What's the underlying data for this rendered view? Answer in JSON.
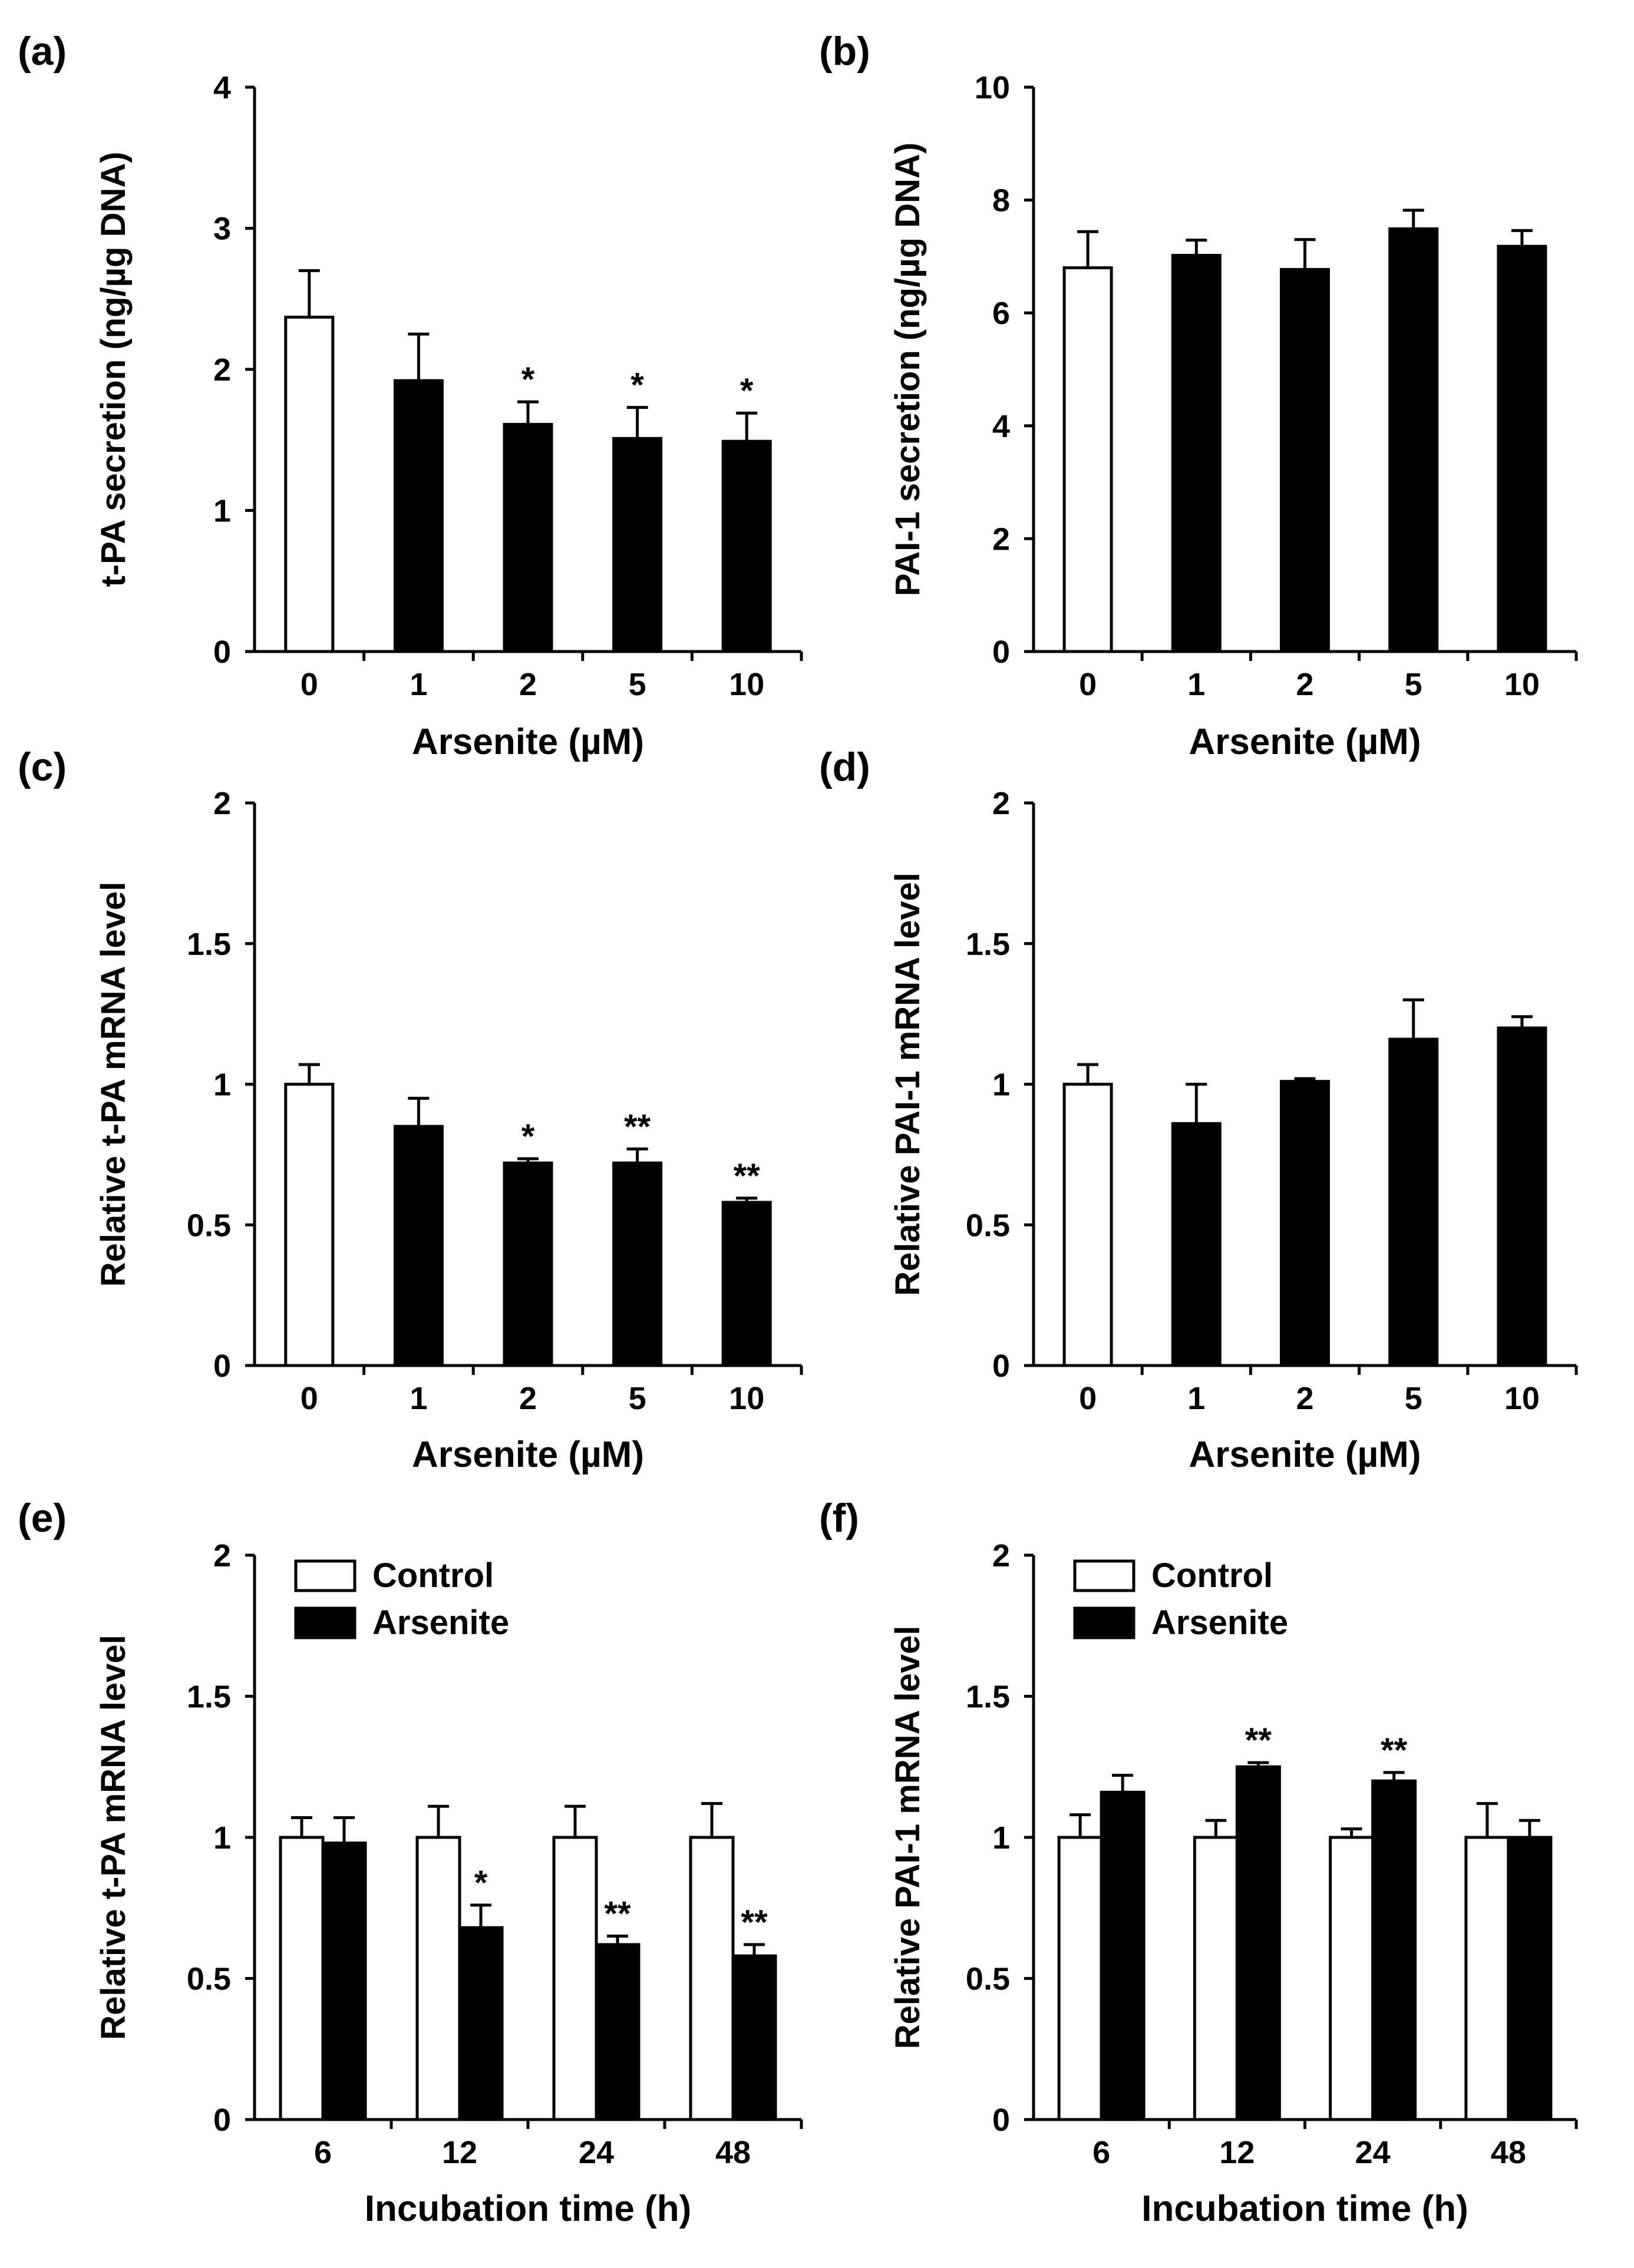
{
  "chart_data": [
    {
      "type": "bar",
      "panel_label": "(a)",
      "xlabel": "Arsenite (µM)",
      "ylabel": "t-PA secretion (ng/µg DNA)",
      "categories": [
        "0",
        "1",
        "2",
        "5",
        "10"
      ],
      "ylim": [
        0,
        4
      ],
      "yticks": [
        "0",
        "1",
        "2",
        "3",
        "4"
      ],
      "series": [
        {
          "name": "",
          "colors": [
            "#ffffff",
            "#000000",
            "#000000",
            "#000000",
            "#000000"
          ],
          "values": [
            2.37,
            1.92,
            1.61,
            1.51,
            1.49
          ],
          "errors": [
            0.33,
            0.33,
            0.16,
            0.22,
            0.2
          ],
          "annotations": [
            "",
            "",
            "*",
            "*",
            "*"
          ]
        }
      ]
    },
    {
      "type": "bar",
      "panel_label": "(b)",
      "xlabel": "Arsenite (µM)",
      "ylabel": "PAI-1 secretion (ng/µg DNA)",
      "categories": [
        "0",
        "1",
        "2",
        "5",
        "10"
      ],
      "ylim": [
        0,
        10
      ],
      "yticks": [
        "0",
        "2",
        "4",
        "6",
        "8",
        "10"
      ],
      "series": [
        {
          "name": "",
          "colors": [
            "#ffffff",
            "#000000",
            "#000000",
            "#000000",
            "#000000"
          ],
          "values": [
            6.8,
            7.02,
            6.77,
            7.49,
            7.18
          ],
          "errors": [
            0.64,
            0.27,
            0.53,
            0.33,
            0.28
          ],
          "annotations": [
            "",
            "",
            "",
            "",
            ""
          ]
        }
      ]
    },
    {
      "type": "bar",
      "panel_label": "(c)",
      "xlabel": "Arsenite (µM)",
      "ylabel": "Relative t-PA mRNA level",
      "categories": [
        "0",
        "1",
        "2",
        "5",
        "10"
      ],
      "ylim": [
        0,
        2
      ],
      "yticks": [
        "0",
        "0.5",
        "1",
        "1.5",
        "2"
      ],
      "series": [
        {
          "name": "",
          "colors": [
            "#ffffff",
            "#000000",
            "#000000",
            "#000000",
            "#000000"
          ],
          "values": [
            1.0,
            0.85,
            0.72,
            0.72,
            0.58
          ],
          "errors": [
            0.07,
            0.1,
            0.015,
            0.05,
            0.015
          ],
          "annotations": [
            "",
            "",
            "*",
            "**",
            "**"
          ]
        }
      ]
    },
    {
      "type": "bar",
      "panel_label": "(d)",
      "xlabel": "Arsenite (µM)",
      "ylabel": "Relative PAI-1 mRNA level",
      "categories": [
        "0",
        "1",
        "2",
        "5",
        "10"
      ],
      "ylim": [
        0,
        2
      ],
      "yticks": [
        "0",
        "0.5",
        "1",
        "1.5",
        "2"
      ],
      "series": [
        {
          "name": "",
          "colors": [
            "#ffffff",
            "#000000",
            "#000000",
            "#000000",
            "#000000"
          ],
          "values": [
            1.0,
            0.86,
            1.01,
            1.16,
            1.2
          ],
          "errors": [
            0.07,
            0.14,
            0.01,
            0.14,
            0.04
          ],
          "annotations": [
            "",
            "",
            "",
            "",
            ""
          ]
        }
      ]
    },
    {
      "type": "bar",
      "panel_label": "(e)",
      "xlabel": "Incubation time (h)",
      "ylabel": "Relative t-PA mRNA level",
      "categories": [
        "6",
        "12",
        "24",
        "48"
      ],
      "ylim": [
        0,
        2
      ],
      "yticks": [
        "0",
        "0.5",
        "1",
        "1.5",
        "2"
      ],
      "legend": [
        "Control",
        "Arsenite"
      ],
      "series": [
        {
          "name": "Control",
          "color": "#ffffff",
          "values": [
            1.0,
            1.0,
            1.0,
            1.0
          ],
          "errors": [
            0.07,
            0.11,
            0.11,
            0.12
          ],
          "annotations": [
            "",
            "",
            "",
            ""
          ]
        },
        {
          "name": "Arsenite",
          "color": "#000000",
          "values": [
            0.98,
            0.68,
            0.62,
            0.58
          ],
          "errors": [
            0.09,
            0.08,
            0.03,
            0.04
          ],
          "annotations": [
            "",
            "*",
            "**",
            "**"
          ]
        }
      ]
    },
    {
      "type": "bar",
      "panel_label": "(f)",
      "xlabel": "Incubation time (h)",
      "ylabel": "Relative PAI-1 mRNA level",
      "categories": [
        "6",
        "12",
        "24",
        "48"
      ],
      "ylim": [
        0,
        2
      ],
      "yticks": [
        "0",
        "0.5",
        "1",
        "1.5",
        "2"
      ],
      "legend": [
        "Control",
        "Arsenite"
      ],
      "series": [
        {
          "name": "Control",
          "color": "#ffffff",
          "values": [
            1.0,
            1.0,
            1.0,
            1.0
          ],
          "errors": [
            0.08,
            0.06,
            0.03,
            0.12
          ],
          "annotations": [
            "",
            "",
            "",
            ""
          ]
        },
        {
          "name": "Arsenite",
          "color": "#000000",
          "values": [
            1.16,
            1.25,
            1.2,
            1.0
          ],
          "errors": [
            0.06,
            0.015,
            0.03,
            0.06
          ],
          "annotations": [
            "",
            "**",
            "**",
            ""
          ]
        }
      ]
    }
  ]
}
